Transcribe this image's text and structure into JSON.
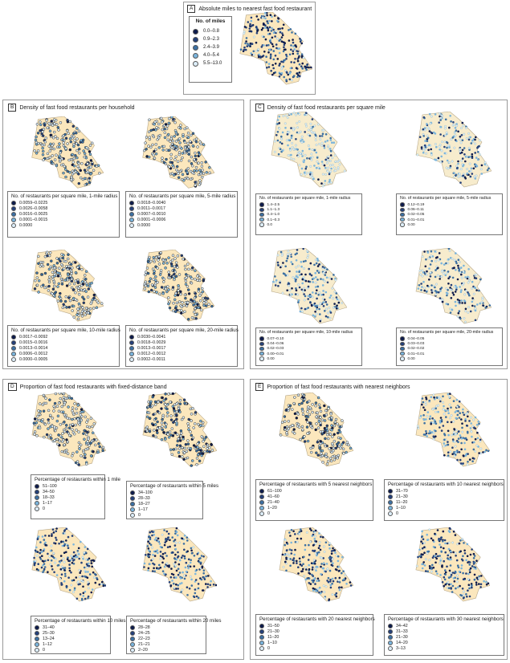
{
  "colors": [
    "#0d1b4c",
    "#24407a",
    "#3c70a3",
    "#7ab4dc",
    "#ddeef9"
  ],
  "map_fill": "#fbe7bd",
  "panels": {
    "A": {
      "letter": "A",
      "title": "Absolute miles to nearest fast food restaurant",
      "legend_title": "No. of miles",
      "items": [
        "0.0–0.8",
        "0.9–2.3",
        "2.4–3.9",
        "4.0–5.4",
        "5.5–13.0"
      ]
    },
    "B": {
      "letter": "B",
      "title": "Density of fast food restaurants per household",
      "maps": [
        {
          "legend_title": "No. of restaurants per square mile, 1-mile radius",
          "items": [
            "0.0059–0.0225",
            "0.0026–0.0058",
            "0.0016–0.0025",
            "0.0001–0.0015",
            "0.0000"
          ]
        },
        {
          "legend_title": "No. of restaurants per square mile, 5-mile radius",
          "items": [
            "0.0018–0.0040",
            "0.0011–0.0017",
            "0.0007–0.0010",
            "0.0001–0.0006",
            "0.0000"
          ]
        },
        {
          "legend_title": "No. of restaurants per square mile, 10-mile radius",
          "items": [
            "0.0017–0.0092",
            "0.0015–0.0016",
            "0.0013–0.0014",
            "0.0006–0.0012",
            "0.0000–0.0005"
          ]
        },
        {
          "legend_title": "No. of restaurants per square mile, 20-mile radius",
          "items": [
            "0.0030–0.0041",
            "0.0018–0.0029",
            "0.0013–0.0017",
            "0.0012–0.0012",
            "0.0002–0.0011"
          ]
        }
      ]
    },
    "C": {
      "letter": "C",
      "title": "Density of fast food restaurants per square mile",
      "maps": [
        {
          "legend_title": "No. of restaurants per square mile, 1-mile radius",
          "items": [
            "1.4–2.5",
            "1.1–1.3",
            "0.4–1.0",
            "0.1–0.3",
            "0.0"
          ]
        },
        {
          "legend_title": "No. of restaurants per square mile, 5-mile radius",
          "items": [
            "0.12–0.19",
            "0.06–0.11",
            "0.02–0.05",
            "0.01–0.01",
            "0.00"
          ]
        },
        {
          "legend_title": "No. of restaurants per square mile, 10-mile radius",
          "items": [
            "0.07–0.10",
            "0.04–0.06",
            "0.02–0.03",
            "0.00–0.01",
            "0.00"
          ]
        },
        {
          "legend_title": "No. of restaurants per square mile, 20-mile radius",
          "items": [
            "0.04–0.05",
            "0.03–0.03",
            "0.02–0.02",
            "0.01–0.01",
            "0.00"
          ]
        }
      ]
    },
    "D": {
      "letter": "D",
      "title": "Proportion of fast food restaurants with fixed-distance band",
      "maps": [
        {
          "legend_title": "Percentage of restaurants within 1 mile",
          "items": [
            "51–100",
            "34–50",
            "18–33",
            "1–17",
            "0"
          ]
        },
        {
          "legend_title": "Percentage of restaurants within 5 miles",
          "items": [
            "34–100",
            "28–33",
            "18–27",
            "1–17",
            "0"
          ]
        },
        {
          "legend_title": "Percentage of restaurants within 10 miles",
          "items": [
            "31–40",
            "25–30",
            "13–24",
            "1–12",
            "0"
          ]
        },
        {
          "legend_title": "Percentage of restaurants within 20 miles",
          "items": [
            "28–28",
            "24–25",
            "22–23",
            "21–21",
            "2–20"
          ]
        }
      ]
    },
    "E": {
      "letter": "E",
      "title": "Proportion of fast food restaurants with nearest neighbors",
      "maps": [
        {
          "legend_title": "Percentage of restaurants with 5 nearest neighbors",
          "items": [
            "61–100",
            "41–60",
            "21–40",
            "1–20",
            "0"
          ]
        },
        {
          "legend_title": "Percentage of restaurants with 10 nearest neighbors",
          "items": [
            "31–70",
            "21–30",
            "11–20",
            "1–10",
            "0"
          ]
        },
        {
          "legend_title": "Percentage of restaurants with 20 nearest neighbors",
          "items": [
            "31–50",
            "21–30",
            "11–20",
            "1–10",
            "0"
          ]
        },
        {
          "legend_title": "Percentage of restaurants with 30 nearest neighbors",
          "items": [
            "34–42",
            "31–33",
            "21–30",
            "14–20",
            "3–13"
          ]
        }
      ]
    }
  }
}
